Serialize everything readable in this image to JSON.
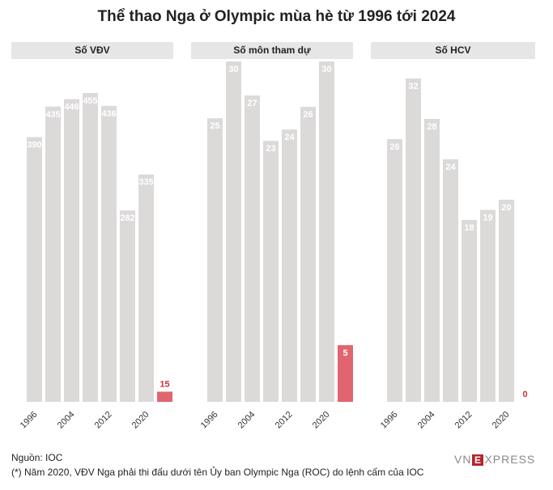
{
  "title": "Thể thao Nga ở Olympic mùa hè từ 1996 tới 2024",
  "chart_data": [
    {
      "type": "bar",
      "title": "Số VĐV",
      "categories": [
        "1996",
        "2000",
        "2004",
        "2008",
        "2012",
        "2016",
        "2020",
        "2024"
      ],
      "values": [
        390,
        435,
        446,
        455,
        436,
        282,
        335,
        15
      ],
      "value_labels": [
        "390",
        "435",
        "446",
        "455",
        "436",
        "282",
        "335",
        "15"
      ],
      "ylim": [
        0,
        455
      ],
      "xticks": [
        "1996",
        "2004",
        "2012",
        "2020"
      ]
    },
    {
      "type": "bar",
      "title": "Số môn tham dự",
      "categories": [
        "1996",
        "2000",
        "2004",
        "2008",
        "2012",
        "2016",
        "2020",
        "2024"
      ],
      "values": [
        25,
        30,
        27,
        23,
        24,
        26,
        30,
        5
      ],
      "value_labels": [
        "25",
        "30",
        "27",
        "23",
        "24",
        "26",
        "30",
        "5"
      ],
      "ylim": [
        0,
        30
      ],
      "xticks": [
        "1996",
        "2004",
        "2012",
        "2020"
      ]
    },
    {
      "type": "bar",
      "title": "Số HCV",
      "categories": [
        "1996",
        "2000",
        "2004",
        "2008",
        "2012",
        "2016",
        "2020",
        "2024"
      ],
      "values": [
        26,
        32,
        28,
        24,
        18,
        19,
        20,
        0
      ],
      "value_labels": [
        "26",
        "32",
        "28",
        "24",
        "18",
        "19",
        "20",
        "0"
      ],
      "ylim": [
        0,
        32
      ],
      "xticks": [
        "1996",
        "2004",
        "2012",
        "2020"
      ]
    }
  ],
  "colors": {
    "bar": "#dcd9d9",
    "highlight": "#e0656e",
    "highlight_text": "#c8323c",
    "header_bg": "#e6e6e6"
  },
  "notes": {
    "source": "Nguồn: IOC",
    "footnote": "(*) Năm 2020, VĐV Nga phải thi đấu dưới tên Ủy ban Olympic Nga (ROC) do lệnh cấm của IOC"
  },
  "logo": {
    "left": "VN",
    "e": "E",
    "right": "XPRESS"
  }
}
